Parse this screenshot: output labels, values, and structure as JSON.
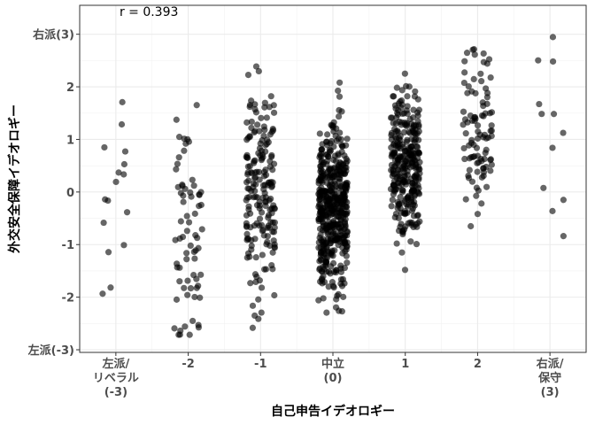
{
  "chart_data": {
    "type": "scatter",
    "title": "",
    "xlabel": "自己申告イデオロギー",
    "ylabel": "外交安全保障イデオロギー",
    "annotation": "r = 0.393",
    "xlim": [
      -3.5,
      3.5
    ],
    "ylim": [
      -3.05,
      3.55
    ],
    "grid": true,
    "legend": "none",
    "point_color": "#000000",
    "x_ticks": [
      {
        "value": -3,
        "lines": [
          "左派/",
          "リベラル",
          "(-3)"
        ]
      },
      {
        "value": -2,
        "lines": [
          "-2"
        ]
      },
      {
        "value": -1,
        "lines": [
          "-1"
        ]
      },
      {
        "value": 0,
        "lines": [
          "中立",
          "(0)"
        ]
      },
      {
        "value": 1,
        "lines": [
          "1"
        ]
      },
      {
        "value": 2,
        "lines": [
          "2"
        ]
      },
      {
        "value": 3,
        "lines": [
          "右派/",
          "保守",
          "(3)"
        ]
      }
    ],
    "y_ticks": [
      {
        "value": -3,
        "label": "左派(-3)"
      },
      {
        "value": -2,
        "label": "-2"
      },
      {
        "value": -1,
        "label": "-1"
      },
      {
        "value": 0,
        "label": "0"
      },
      {
        "value": 1,
        "label": "1"
      },
      {
        "value": 2,
        "label": "2"
      },
      {
        "value": 3,
        "label": "右派(3)"
      }
    ],
    "groups": [
      {
        "x": -3,
        "n": 16,
        "range": [
          -2.0,
          1.75
        ],
        "center": -0.2,
        "spread": 1.1
      },
      {
        "x": -2,
        "n": 70,
        "range": [
          -2.75,
          1.9
        ],
        "center": -0.7,
        "spread": 1.05
      },
      {
        "x": -1,
        "n": 190,
        "range": [
          -2.6,
          2.4
        ],
        "center": 0.05,
        "spread": 0.9
      },
      {
        "x": 0,
        "n": 480,
        "range": [
          -2.35,
          2.6
        ],
        "center": -0.3,
        "spread": 0.75
      },
      {
        "x": 1,
        "n": 310,
        "range": [
          -2.35,
          2.8
        ],
        "center": 0.55,
        "spread": 0.75
      },
      {
        "x": 2,
        "n": 95,
        "range": [
          -2.0,
          2.75
        ],
        "center": 1.2,
        "spread": 0.85
      },
      {
        "x": 3,
        "n": 12,
        "range": [
          -0.85,
          3.1
        ],
        "center": 1.3,
        "spread": 1.3
      }
    ]
  }
}
